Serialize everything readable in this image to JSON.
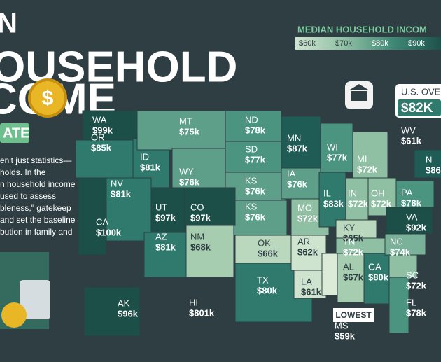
{
  "title": {
    "line1": "N",
    "line2": "OUSEHOLD",
    "line3": "COME",
    "badge": "ATE"
  },
  "coin_symbol": "$",
  "intro": [
    "en't just statistics—",
    "holds. In the",
    "n household income",
    "used to assess",
    "bleness,\" gatekeep",
    "and set the baseline",
    "bution in family and"
  ],
  "legend": {
    "title": "MEDIAN HOUSEHOLD INCOM",
    "stops": [
      {
        "label": "$60k",
        "color": "#cfe4cf"
      },
      {
        "label": "$70k",
        "color": "#8fc0a4"
      },
      {
        "label": "$80k",
        "color": "#3f8876"
      },
      {
        "label": "$90k",
        "color": "#1d4f49"
      }
    ]
  },
  "us_overall": {
    "label": "U.S. OVERA",
    "value": "$82K"
  },
  "lowest_tag": "LOWEST",
  "states": [
    {
      "abbr": "WA",
      "income": "$99k",
      "color": "#1d4f49",
      "ink": "#ffffff"
    },
    {
      "abbr": "OR",
      "income": "$85k",
      "color": "#2f7a6c",
      "ink": "#ffffff"
    },
    {
      "abbr": "ID",
      "income": "$81k",
      "color": "#2f7a6c",
      "ink": "#ffffff"
    },
    {
      "abbr": "MT",
      "income": "$75k",
      "color": "#5d9f88",
      "ink": "#ffffff"
    },
    {
      "abbr": "WY",
      "income": "$76k",
      "color": "#5d9f88",
      "ink": "#ffffff"
    },
    {
      "abbr": "ND",
      "income": "$78k",
      "color": "#4a9480",
      "ink": "#ffffff"
    },
    {
      "abbr": "SD",
      "income": "$77k",
      "color": "#4a9480",
      "ink": "#ffffff"
    },
    {
      "abbr": "KS",
      "income": "$76k",
      "color": "#5d9f88",
      "ink": "#ffffff"
    },
    {
      "abbr": "KS",
      "income": "$76k",
      "color": "#5d9f88",
      "ink": "#ffffff"
    },
    {
      "abbr": "NV",
      "income": "$81k",
      "color": "#2f7a6c",
      "ink": "#ffffff"
    },
    {
      "abbr": "UT",
      "income": "$97k",
      "color": "#1d4f49",
      "ink": "#ffffff"
    },
    {
      "abbr": "CO",
      "income": "$97k",
      "color": "#1d4f49",
      "ink": "#ffffff"
    },
    {
      "abbr": "CA",
      "income": "$100k",
      "color": "#1d4f49",
      "ink": "#ffffff"
    },
    {
      "abbr": "AZ",
      "income": "$81k",
      "color": "#2f7a6c",
      "ink": "#ffffff"
    },
    {
      "abbr": "NM",
      "income": "$68k",
      "color": "#a6cdb0",
      "ink": "#2f3e43"
    },
    {
      "abbr": "OK",
      "income": "$66k",
      "color": "#b9d8bd",
      "ink": "#2f3e43"
    },
    {
      "abbr": "TX",
      "income": "$80k",
      "color": "#2f7a6c",
      "ink": "#ffffff"
    },
    {
      "abbr": "MN",
      "income": "$87k",
      "color": "#1f5c55",
      "ink": "#ffffff"
    },
    {
      "abbr": "IA",
      "income": "$76k",
      "color": "#5d9f88",
      "ink": "#ffffff"
    },
    {
      "abbr": "MO",
      "income": "$72k",
      "color": "#8fc0a4",
      "ink": "#ffffff"
    },
    {
      "abbr": "AR",
      "income": "$62k",
      "color": "#cfe4cf",
      "ink": "#2f3e43"
    },
    {
      "abbr": "LA",
      "income": "$61k",
      "color": "#cfe4cf",
      "ink": "#2f3e43"
    },
    {
      "abbr": "WI",
      "income": "$77k",
      "color": "#4a9480",
      "ink": "#ffffff"
    },
    {
      "abbr": "IL",
      "income": "$83k",
      "color": "#2f7a6c",
      "ink": "#ffffff"
    },
    {
      "abbr": "MI",
      "income": "$72k",
      "color": "#8fc0a4",
      "ink": "#ffffff"
    },
    {
      "abbr": "IN",
      "income": "$72k",
      "color": "#8fc0a4",
      "ink": "#ffffff"
    },
    {
      "abbr": "OH",
      "income": "$72k",
      "color": "#8fc0a4",
      "ink": "#ffffff"
    },
    {
      "abbr": "KY",
      "income": "$65k",
      "color": "#b9d8bd",
      "ink": "#2f3e43"
    },
    {
      "abbr": "TN",
      "income": "$72k",
      "color": "#8fc0a4",
      "ink": "#ffffff"
    },
    {
      "abbr": "AL",
      "income": "$67k",
      "color": "#a6cdb0",
      "ink": "#2f3e43"
    },
    {
      "abbr": "GA",
      "income": "$80k",
      "color": "#2f7a6c",
      "ink": "#ffffff"
    },
    {
      "abbr": "MS",
      "income": "$59k",
      "color": "#dcebd8",
      "ink": "#ffffff"
    },
    {
      "abbr": "NC",
      "income": "$74k",
      "color": "#79b298",
      "ink": "#ffffff"
    },
    {
      "abbr": "VA",
      "income": "$92k",
      "color": "#1d4f49",
      "ink": "#ffffff"
    },
    {
      "abbr": "PA",
      "income": "$78k",
      "color": "#4a9480",
      "ink": "#ffffff"
    },
    {
      "abbr": "SC",
      "income": "$72k",
      "color": "#8fc0a4",
      "ink": "#ffffff"
    },
    {
      "abbr": "FL",
      "income": "$78k",
      "color": "#4a9480",
      "ink": "#ffffff"
    },
    {
      "abbr": "WV",
      "income": "$61k",
      "color": "#cfe4cf",
      "ink": "#ffffff"
    },
    {
      "abbr": "N",
      "income": "$86",
      "color": "#1f5c55",
      "ink": "#ffffff"
    },
    {
      "abbr": "AK",
      "income": "$96k",
      "color": "#1d4f49",
      "ink": "#ffffff"
    },
    {
      "abbr": "HI",
      "income": "$801k",
      "color": "#4a9480",
      "ink": "#ffffff"
    }
  ]
}
